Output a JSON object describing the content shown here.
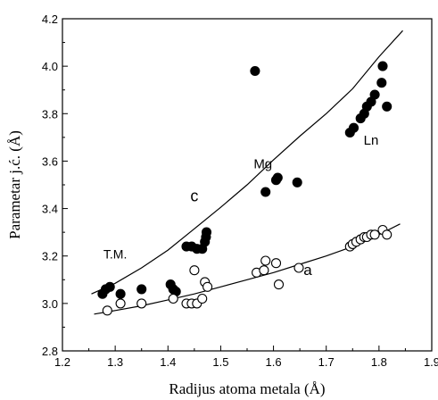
{
  "chart_data": {
    "type": "scatter",
    "title": "",
    "xlabel": "Radijus atoma metala (Å)",
    "ylabel": "Parametar j.ć. (Å)",
    "xlim": [
      1.2,
      1.9
    ],
    "ylim": [
      2.8,
      4.2
    ],
    "xticks": [
      "1.2",
      "1.3",
      "1.4",
      "1.5",
      "1.6",
      "1.7",
      "1.8",
      "1.9"
    ],
    "yticks": [
      "2.8",
      "3.0",
      "3.2",
      "3.4",
      "3.6",
      "3.8",
      "4.0",
      "4.2"
    ],
    "grid": false,
    "legend": "none",
    "annotations": [
      {
        "text": "T.M.",
        "x": 1.3,
        "y": 3.19
      },
      {
        "text": "c",
        "x": 1.45,
        "y": 3.43
      },
      {
        "text": "Mg",
        "x": 1.58,
        "y": 3.57
      },
      {
        "text": "Ln",
        "x": 1.785,
        "y": 3.67
      },
      {
        "text": "a",
        "x": 1.665,
        "y": 3.12
      }
    ],
    "series": [
      {
        "marker": "filled-circle",
        "points": [
          [
            1.276,
            3.04
          ],
          [
            1.282,
            3.06
          ],
          [
            1.29,
            3.07
          ],
          [
            1.31,
            3.04
          ],
          [
            1.35,
            3.06
          ],
          [
            1.405,
            3.08
          ],
          [
            1.41,
            3.06
          ],
          [
            1.415,
            3.05
          ],
          [
            1.435,
            3.24
          ],
          [
            1.445,
            3.24
          ],
          [
            1.455,
            3.23
          ],
          [
            1.465,
            3.23
          ],
          [
            1.47,
            3.26
          ],
          [
            1.472,
            3.28
          ],
          [
            1.473,
            3.3
          ],
          [
            1.565,
            3.98
          ],
          [
            1.585,
            3.47
          ],
          [
            1.605,
            3.52
          ],
          [
            1.608,
            3.53
          ],
          [
            1.645,
            3.51
          ],
          [
            1.745,
            3.72
          ],
          [
            1.752,
            3.74
          ],
          [
            1.765,
            3.78
          ],
          [
            1.772,
            3.8
          ],
          [
            1.777,
            3.83
          ],
          [
            1.785,
            3.85
          ],
          [
            1.792,
            3.88
          ],
          [
            1.805,
            3.93
          ],
          [
            1.807,
            4.0
          ],
          [
            1.815,
            3.83
          ]
        ],
        "fit": [
          [
            1.255,
            3.04
          ],
          [
            1.3,
            3.085
          ],
          [
            1.35,
            3.15
          ],
          [
            1.4,
            3.225
          ],
          [
            1.45,
            3.315
          ],
          [
            1.5,
            3.405
          ],
          [
            1.55,
            3.5
          ],
          [
            1.6,
            3.605
          ],
          [
            1.65,
            3.705
          ],
          [
            1.7,
            3.8
          ],
          [
            1.75,
            3.905
          ],
          [
            1.8,
            4.04
          ],
          [
            1.845,
            4.15
          ]
        ]
      },
      {
        "marker": "open-circle",
        "points": [
          [
            1.285,
            2.97
          ],
          [
            1.31,
            3.0
          ],
          [
            1.35,
            3.0
          ],
          [
            1.41,
            3.02
          ],
          [
            1.435,
            3.0
          ],
          [
            1.445,
            3.0
          ],
          [
            1.45,
            3.14
          ],
          [
            1.455,
            3.0
          ],
          [
            1.465,
            3.02
          ],
          [
            1.47,
            3.09
          ],
          [
            1.475,
            3.07
          ],
          [
            1.568,
            3.13
          ],
          [
            1.582,
            3.14
          ],
          [
            1.585,
            3.18
          ],
          [
            1.605,
            3.17
          ],
          [
            1.61,
            3.08
          ],
          [
            1.648,
            3.15
          ],
          [
            1.745,
            3.24
          ],
          [
            1.75,
            3.25
          ],
          [
            1.757,
            3.26
          ],
          [
            1.765,
            3.27
          ],
          [
            1.772,
            3.28
          ],
          [
            1.777,
            3.28
          ],
          [
            1.785,
            3.29
          ],
          [
            1.792,
            3.29
          ],
          [
            1.807,
            3.31
          ],
          [
            1.815,
            3.29
          ]
        ],
        "fit": [
          [
            1.26,
            2.955
          ],
          [
            1.3,
            2.97
          ],
          [
            1.35,
            2.99
          ],
          [
            1.4,
            3.015
          ],
          [
            1.45,
            3.04
          ],
          [
            1.5,
            3.07
          ],
          [
            1.55,
            3.1
          ],
          [
            1.6,
            3.13
          ],
          [
            1.65,
            3.165
          ],
          [
            1.7,
            3.2
          ],
          [
            1.75,
            3.24
          ],
          [
            1.8,
            3.29
          ],
          [
            1.84,
            3.335
          ]
        ]
      }
    ]
  }
}
